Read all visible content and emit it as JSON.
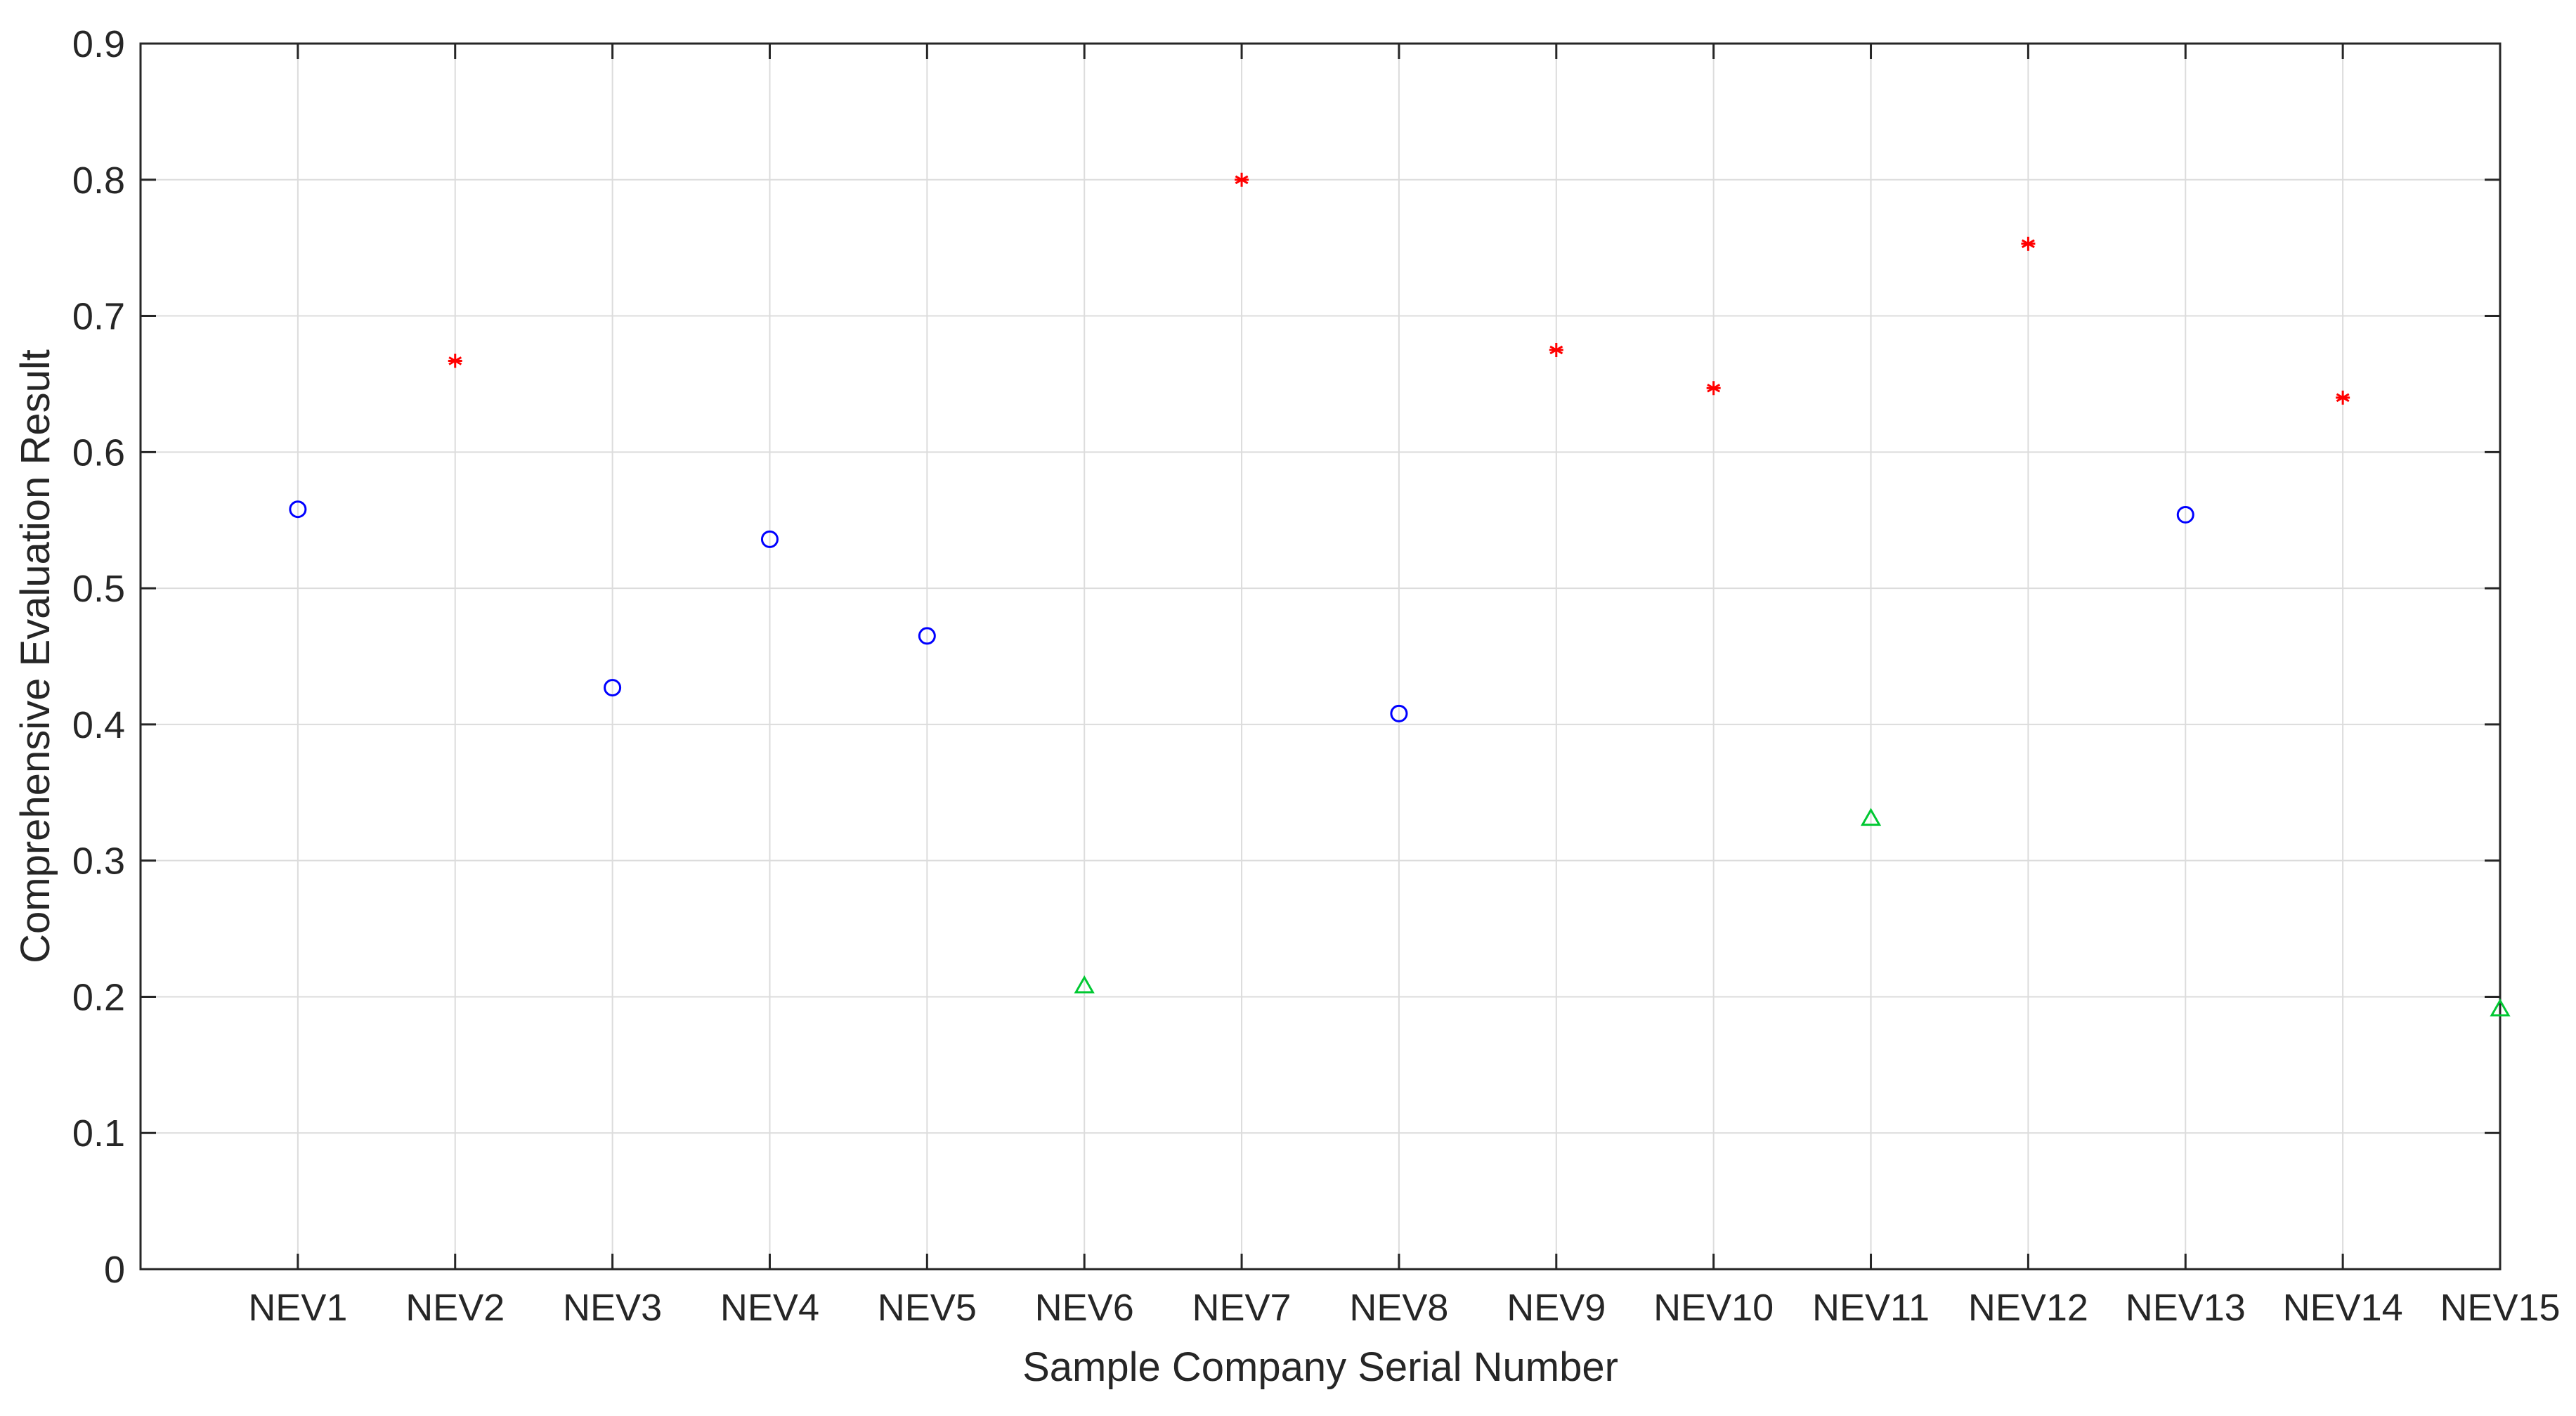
{
  "chart_data": {
    "type": "scatter",
    "title": "",
    "xlabel": "Sample Company Serial Number",
    "ylabel": "Comprehensive Evaluation Result",
    "categories": [
      "NEV1",
      "NEV2",
      "NEV3",
      "NEV4",
      "NEV5",
      "NEV6",
      "NEV7",
      "NEV8",
      "NEV9",
      "NEV10",
      "NEV11",
      "NEV12",
      "NEV13",
      "NEV14",
      "NEV15"
    ],
    "ylim": [
      0,
      0.9
    ],
    "xlim": [
      0,
      15
    ],
    "yticks": [
      "0",
      "0.1",
      "0.2",
      "0.3",
      "0.4",
      "0.5",
      "0.6",
      "0.7",
      "0.8",
      "0.9"
    ],
    "grid": true,
    "legend": "none",
    "series": [
      {
        "marker": "circle",
        "color": "#0000ff",
        "points": [
          {
            "x": "NEV1",
            "y": 0.558
          },
          {
            "x": "NEV3",
            "y": 0.427
          },
          {
            "x": "NEV4",
            "y": 0.536
          },
          {
            "x": "NEV5",
            "y": 0.465
          },
          {
            "x": "NEV8",
            "y": 0.408
          },
          {
            "x": "NEV13",
            "y": 0.554
          }
        ]
      },
      {
        "marker": "asterisk",
        "color": "#ff0000",
        "points": [
          {
            "x": "NEV2",
            "y": 0.667
          },
          {
            "x": "NEV7",
            "y": 0.8
          },
          {
            "x": "NEV9",
            "y": 0.675
          },
          {
            "x": "NEV10",
            "y": 0.647
          },
          {
            "x": "NEV12",
            "y": 0.753
          },
          {
            "x": "NEV14",
            "y": 0.64
          }
        ]
      },
      {
        "marker": "triangle",
        "color": "#00c832",
        "points": [
          {
            "x": "NEV6",
            "y": 0.208
          },
          {
            "x": "NEV11",
            "y": 0.331
          },
          {
            "x": "NEV15",
            "y": 0.191
          }
        ]
      }
    ]
  }
}
